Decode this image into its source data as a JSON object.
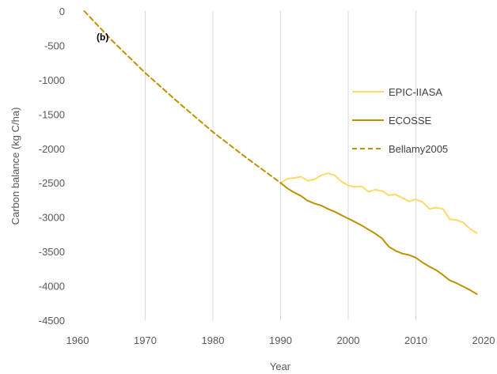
{
  "chart_data": {
    "type": "line",
    "title": "",
    "xlabel": "Year",
    "ylabel": "Carbon balance (kg C/ha)",
    "xlim": [
      1960,
      2020
    ],
    "ylim": [
      -4500,
      0
    ],
    "xticks": [
      1960,
      1970,
      1980,
      1990,
      2000,
      2010,
      2020
    ],
    "yticks": [
      0,
      -500,
      -1000,
      -1500,
      -2000,
      -2500,
      -3000,
      -3500,
      -4000,
      -4500
    ],
    "grid": "vertical",
    "legend_position": "right",
    "annotation": "(b)",
    "series": [
      {
        "name": "EPIC-IIASA",
        "color": "#FFD966",
        "style": "solid",
        "x": [
          1990,
          1991,
          1992,
          1993,
          1994,
          1995,
          1996,
          1997,
          1998,
          1999,
          2000,
          2001,
          2002,
          2003,
          2004,
          2005,
          2006,
          2007,
          2008,
          2009,
          2010,
          2011,
          2012,
          2013,
          2014,
          2015,
          2016,
          2017,
          2018,
          2019
        ],
        "values": [
          -2500,
          -2440,
          -2430,
          -2410,
          -2470,
          -2450,
          -2390,
          -2360,
          -2390,
          -2480,
          -2540,
          -2560,
          -2550,
          -2630,
          -2600,
          -2620,
          -2680,
          -2670,
          -2720,
          -2770,
          -2740,
          -2780,
          -2880,
          -2860,
          -2880,
          -3030,
          -3040,
          -3080,
          -3170,
          -3230
        ]
      },
      {
        "name": "ECOSSE",
        "color": "#BF9000",
        "style": "solid",
        "x": [
          1990,
          1991,
          1992,
          1993,
          1994,
          1995,
          1996,
          1997,
          1998,
          1999,
          2000,
          2001,
          2002,
          2003,
          2004,
          2005,
          2006,
          2007,
          2008,
          2009,
          2010,
          2011,
          2012,
          2013,
          2014,
          2015,
          2016,
          2017,
          2018,
          2019
        ],
        "values": [
          -2500,
          -2580,
          -2640,
          -2690,
          -2760,
          -2800,
          -2830,
          -2880,
          -2920,
          -2970,
          -3020,
          -3070,
          -3120,
          -3180,
          -3240,
          -3310,
          -3430,
          -3490,
          -3530,
          -3550,
          -3590,
          -3660,
          -3720,
          -3770,
          -3840,
          -3920,
          -3960,
          -4010,
          -4060,
          -4120
        ]
      },
      {
        "name": "Bellamy2005",
        "color": "#BF9000",
        "style": "dashed",
        "x": [
          1961,
          1965,
          1970,
          1975,
          1980,
          1985,
          1990
        ],
        "values": [
          0,
          -420,
          -900,
          -1340,
          -1760,
          -2140,
          -2500
        ]
      }
    ]
  }
}
